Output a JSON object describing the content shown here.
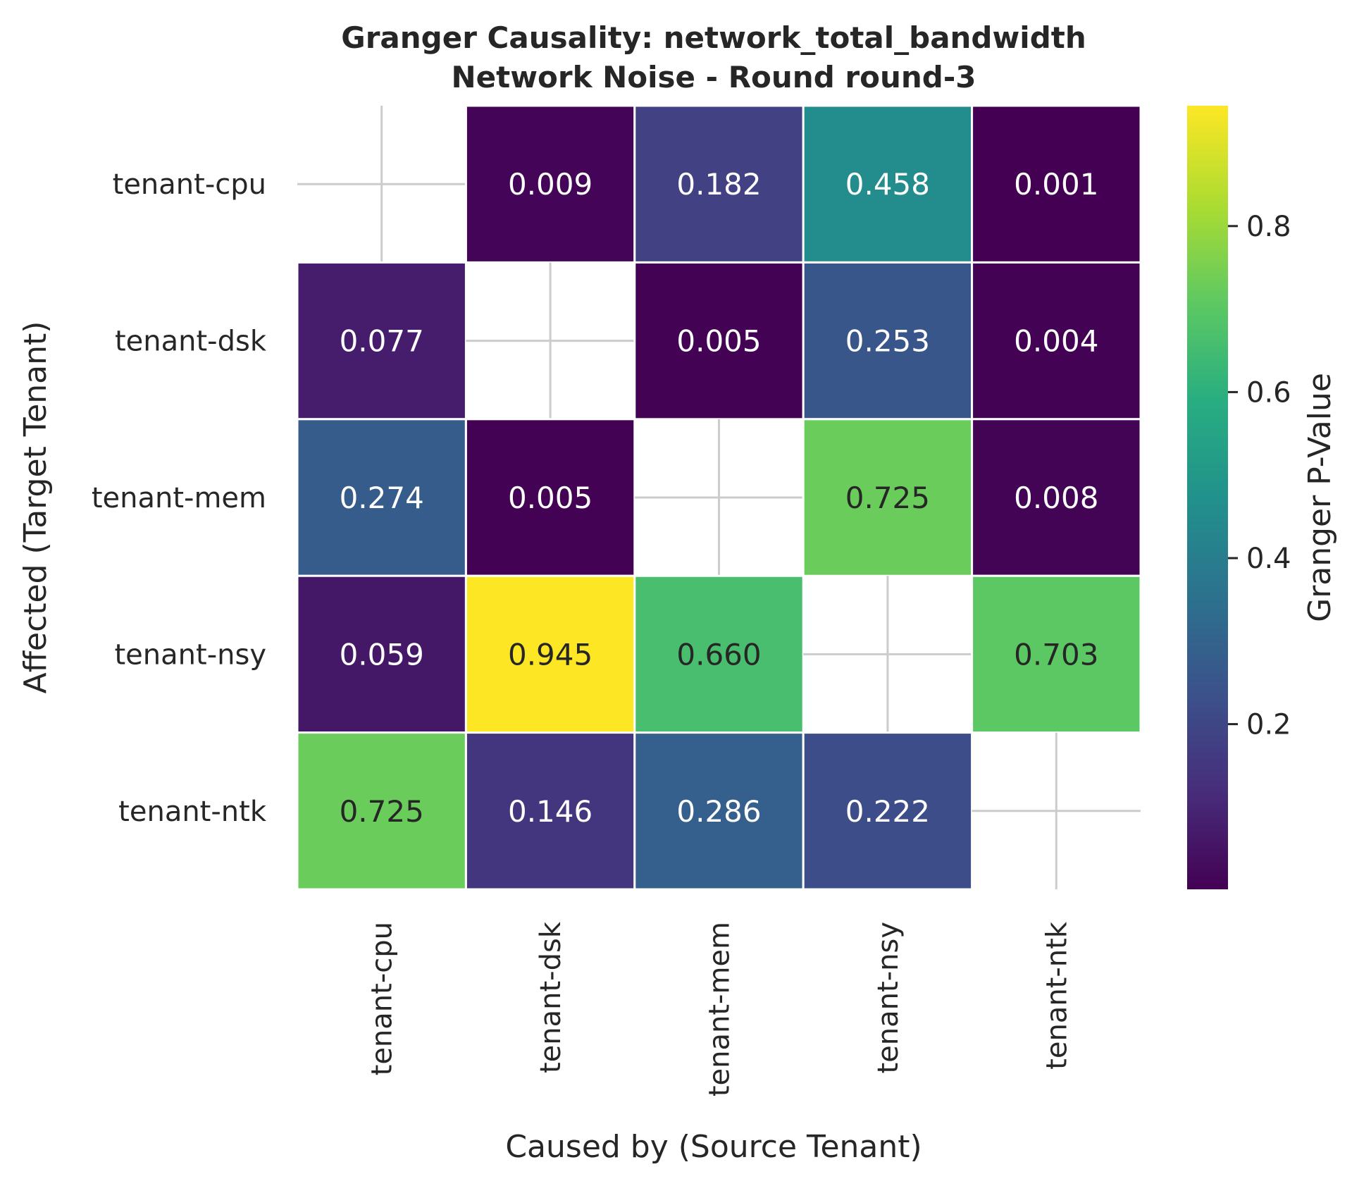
{
  "chart_data": {
    "type": "heatmap",
    "title": "Granger Causality: network_total_bandwidth",
    "subtitle": "Network Noise - Round round-3",
    "xlabel": "Caused by (Source Tenant)",
    "ylabel": "Affected (Target Tenant)",
    "x_categories": [
      "tenant-cpu",
      "tenant-dsk",
      "tenant-mem",
      "tenant-nsy",
      "tenant-ntk"
    ],
    "y_categories": [
      "tenant-cpu",
      "tenant-dsk",
      "tenant-mem",
      "tenant-nsy",
      "tenant-ntk"
    ],
    "values": [
      [
        null,
        0.009,
        0.182,
        0.458,
        0.001
      ],
      [
        0.077,
        null,
        0.005,
        0.253,
        0.004
      ],
      [
        0.274,
        0.005,
        null,
        0.725,
        0.008
      ],
      [
        0.059,
        0.945,
        0.66,
        null,
        0.703
      ],
      [
        0.725,
        0.146,
        0.286,
        0.222,
        null
      ]
    ],
    "value_labels": [
      [
        "",
        "0.009",
        "0.182",
        "0.458",
        "0.001"
      ],
      [
        "0.077",
        "",
        "0.005",
        "0.253",
        "0.004"
      ],
      [
        "0.274",
        "0.005",
        "",
        "0.725",
        "0.008"
      ],
      [
        "0.059",
        "0.945",
        "0.660",
        "",
        "0.703"
      ],
      [
        "0.725",
        "0.146",
        "0.286",
        "0.222",
        ""
      ]
    ],
    "colormap": "viridis",
    "vmin": 0.001,
    "vmax": 0.945,
    "colorbar": {
      "label": "Granger P-Value",
      "ticks": [
        0.2,
        0.4,
        0.6,
        0.8
      ],
      "tick_labels": [
        "0.2",
        "0.4",
        "0.6",
        "0.8"
      ]
    },
    "diagonal_empty": true,
    "cell_border_color": "#ffffff",
    "empty_cell_cross_color": "#cccccc",
    "text_color_dark": "#262626",
    "text_color_light": "#ffffff"
  }
}
